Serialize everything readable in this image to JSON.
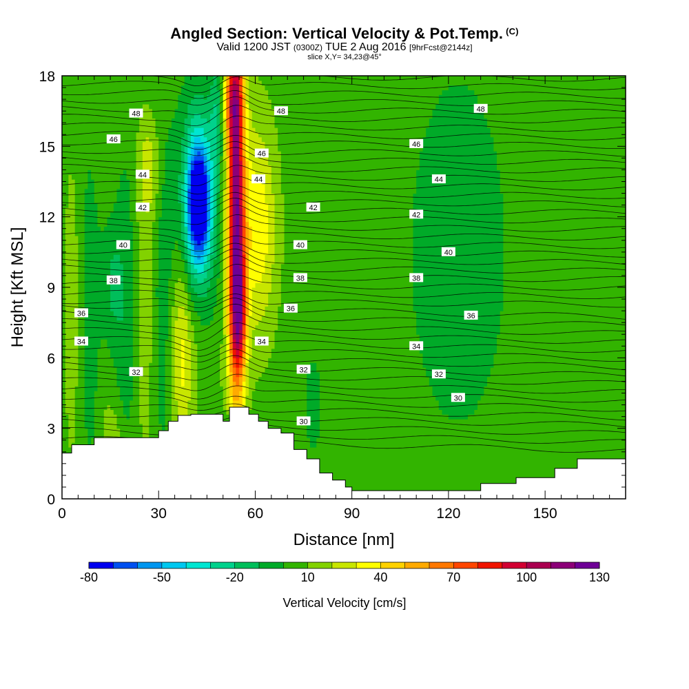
{
  "title": {
    "main": "Angled Section: Vertical Velocity & Pot.Temp.",
    "main_tag": "(C)",
    "valid_prefix": "Valid 1200 JST",
    "valid_utc": "(0300Z)",
    "valid_date": "TUE 2 Aug 2016",
    "forecast": "[9hrFcst@2144z]",
    "slice": "slice X,Y= 34,23@45°"
  },
  "chart_data": {
    "type": "heatmap",
    "xlabel": "Distance [nm]",
    "ylabel": "Height [Kft MSL]",
    "xlim": [
      0,
      175
    ],
    "ylim": [
      0,
      18
    ],
    "x_ticks": [
      0,
      30,
      60,
      90,
      120,
      150
    ],
    "y_ticks": [
      0,
      3,
      6,
      9,
      12,
      15,
      18
    ],
    "colorbar": {
      "label": "Vertical Velocity [cm/s]",
      "min": -80,
      "max": 140,
      "step": 10,
      "tick_labels": [
        -80,
        -50,
        -20,
        10,
        40,
        70,
        100,
        130
      ],
      "colors": [
        "#0000f0",
        "#0050f0",
        "#0096f0",
        "#00c8f0",
        "#00e6d2",
        "#00d28c",
        "#00be5a",
        "#00aa28",
        "#32b400",
        "#82d200",
        "#c8e600",
        "#ffff00",
        "#ffd200",
        "#ffaa00",
        "#ff7800",
        "#ff4600",
        "#f01400",
        "#d20032",
        "#aa0050",
        "#8c0078",
        "#6e0096"
      ]
    },
    "background_value_cm_s": 5,
    "velocity_features": [
      {
        "type": "updraft",
        "center_x_nm": 54,
        "center_height_kft": 12,
        "peak_cm_s": 110
      },
      {
        "type": "updraft",
        "center_x_nm": 55,
        "center_height_kft": 8,
        "peak_cm_s": 90
      },
      {
        "type": "downdraft",
        "center_x_nm": 42,
        "center_height_kft": 12.7,
        "peak_cm_s": -75
      },
      {
        "type": "updraft",
        "center_x_nm": 62,
        "center_height_kft": 12,
        "peak_cm_s": 40
      }
    ],
    "pot_temp_contours_c": [
      30,
      32,
      34,
      36,
      38,
      40,
      42,
      44,
      46,
      48
    ],
    "pot_temp_labels": [
      {
        "value": "48",
        "x": 23,
        "h": 16.4
      },
      {
        "value": "48",
        "x": 68,
        "h": 16.5
      },
      {
        "value": "48",
        "x": 130,
        "h": 16.6
      },
      {
        "value": "46",
        "x": 16,
        "h": 15.3
      },
      {
        "value": "46",
        "x": 62,
        "h": 14.7
      },
      {
        "value": "46",
        "x": 110,
        "h": 15.1
      },
      {
        "value": "44",
        "x": 25,
        "h": 13.8
      },
      {
        "value": "44",
        "x": 61,
        "h": 13.6
      },
      {
        "value": "44",
        "x": 117,
        "h": 13.6
      },
      {
        "value": "42",
        "x": 25,
        "h": 12.4
      },
      {
        "value": "42",
        "x": 78,
        "h": 12.4
      },
      {
        "value": "42",
        "x": 110,
        "h": 12.1
      },
      {
        "value": "40",
        "x": 19,
        "h": 10.8
      },
      {
        "value": "40",
        "x": 74,
        "h": 10.8
      },
      {
        "value": "40",
        "x": 120,
        "h": 10.5
      },
      {
        "value": "38",
        "x": 16,
        "h": 9.3
      },
      {
        "value": "38",
        "x": 74,
        "h": 9.4
      },
      {
        "value": "38",
        "x": 110,
        "h": 9.4
      },
      {
        "value": "36",
        "x": 6,
        "h": 7.9
      },
      {
        "value": "36",
        "x": 71,
        "h": 8.1
      },
      {
        "value": "36",
        "x": 127,
        "h": 7.8
      },
      {
        "value": "34",
        "x": 6,
        "h": 6.7
      },
      {
        "value": "34",
        "x": 62,
        "h": 6.7
      },
      {
        "value": "34",
        "x": 110,
        "h": 6.5
      },
      {
        "value": "32",
        "x": 23,
        "h": 5.4
      },
      {
        "value": "32",
        "x": 75,
        "h": 5.5
      },
      {
        "value": "32",
        "x": 117,
        "h": 5.3
      },
      {
        "value": "30",
        "x": 75,
        "h": 3.3
      },
      {
        "value": "30",
        "x": 123,
        "h": 4.3
      }
    ],
    "terrain_kft": [
      [
        0,
        1.95
      ],
      [
        3,
        2.3
      ],
      [
        10,
        2.6
      ],
      [
        30,
        2.9
      ],
      [
        33,
        3.3
      ],
      [
        36,
        3.55
      ],
      [
        40,
        3.6
      ],
      [
        50,
        3.3
      ],
      [
        52,
        3.9
      ],
      [
        58,
        3.6
      ],
      [
        61,
        3.3
      ],
      [
        64,
        3.0
      ],
      [
        68,
        2.8
      ],
      [
        72,
        2.1
      ],
      [
        76,
        1.7
      ],
      [
        80,
        1.1
      ],
      [
        84,
        0.8
      ],
      [
        88,
        0.5
      ],
      [
        90,
        0.35
      ],
      [
        128,
        0.35
      ],
      [
        130,
        0.65
      ],
      [
        141,
        0.9
      ],
      [
        153,
        1.3
      ],
      [
        160,
        1.7
      ],
      [
        175,
        1.7
      ]
    ]
  }
}
